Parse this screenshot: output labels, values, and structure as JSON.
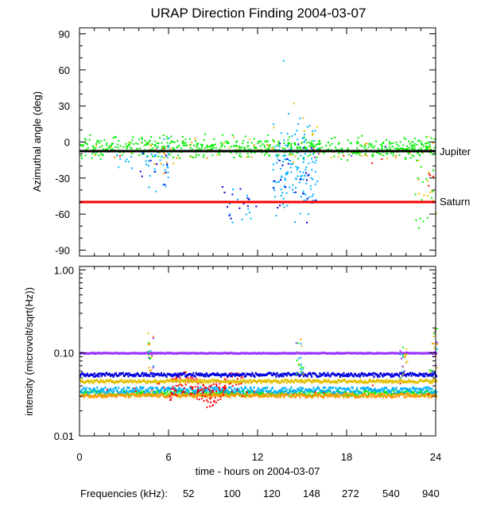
{
  "chart_data": [
    {
      "type": "scatter",
      "title": "URAP Direction Finding  2004-03-07",
      "ylabel": "Azimuthal angle (deg)",
      "xlabel": "",
      "xlim": [
        0,
        24
      ],
      "ylim": [
        -95,
        95
      ],
      "yticks": [
        -90,
        -60,
        -30,
        0,
        30,
        60,
        90
      ],
      "yticklabels": [
        "-90",
        "-60",
        "-30",
        "0",
        "30",
        "60",
        "90"
      ],
      "reference_lines": [
        {
          "name": "Jupiter",
          "value": -7,
          "color": "#000000"
        },
        {
          "name": "Saturn",
          "value": -48,
          "color": "#ff0000"
        }
      ],
      "series": [
        {
          "name": "52",
          "color": "#ff0000",
          "clusters": [
            {
              "x": [
                0,
                24
              ],
              "center": -10,
              "spread": 6,
              "count": 10
            },
            {
              "x": [
                23.3,
                24
              ],
              "center": -25,
              "spread": 10,
              "count": 4
            }
          ]
        },
        {
          "name": "100",
          "color": "#ff9900",
          "clusters": [
            {
              "x": [
                0,
                24
              ],
              "center": -6,
              "spread": 6,
              "count": 35
            },
            {
              "x": [
                4.5,
                6
              ],
              "center": -10,
              "spread": 10,
              "count": 10
            }
          ]
        },
        {
          "name": "120",
          "color": "#e0c000",
          "clusters": [
            {
              "x": [
                0,
                24
              ],
              "center": -6,
              "spread": 7,
              "count": 45
            },
            {
              "x": [
                22.5,
                24
              ],
              "center": -40,
              "spread": 25,
              "count": 12
            },
            {
              "x": [
                13,
                16
              ],
              "center": 0,
              "spread": 20,
              "count": 10
            }
          ]
        },
        {
          "name": "148",
          "color": "#00ee00",
          "clusters": [
            {
              "x": [
                0,
                24
              ],
              "center": -4,
              "spread": 6,
              "count": 650
            },
            {
              "x": [
                22.5,
                23.8
              ],
              "center": -45,
              "spread": 20,
              "count": 14
            }
          ]
        },
        {
          "name": "272",
          "color": "#00b0ff",
          "clusters": [
            {
              "x": [
                13,
                16
              ],
              "center": -20,
              "spread": 28,
              "count": 150
            },
            {
              "x": [
                4,
                6
              ],
              "center": -15,
              "spread": 18,
              "count": 35
            },
            {
              "x": [
                10,
                11.5
              ],
              "center": -55,
              "spread": 12,
              "count": 12
            },
            {
              "x": [
                2,
                3.5
              ],
              "center": -10,
              "spread": 12,
              "count": 10
            },
            {
              "x": [
                13.5,
                13.7
              ],
              "center": 70,
              "spread": 3,
              "count": 1
            }
          ]
        },
        {
          "name": "540",
          "color": "#0000dd",
          "clusters": [
            {
              "x": [
                9.5,
                12
              ],
              "center": -50,
              "spread": 12,
              "count": 14
            },
            {
              "x": [
                13,
                16
              ],
              "center": -30,
              "spread": 25,
              "count": 25
            },
            {
              "x": [
                4,
                6
              ],
              "center": -20,
              "spread": 15,
              "count": 10
            }
          ]
        },
        {
          "name": "940",
          "color": "#9933ff",
          "clusters": [
            {
              "x": [
                0,
                24
              ],
              "center": -10,
              "spread": 8,
              "count": 5
            }
          ]
        }
      ]
    },
    {
      "type": "line",
      "title": "",
      "ylabel": "intensity (microvolt/sqrt(Hz))",
      "xlabel": "time - hours on 2004-03-07",
      "xlim": [
        0,
        24
      ],
      "yscale": "log",
      "ylim": [
        0.01,
        1.1
      ],
      "yticks": [
        0.01,
        0.1,
        1.0
      ],
      "yticklabels": [
        "0.01",
        "0.10",
        "1.00"
      ],
      "xticks": [
        0,
        6,
        12,
        18,
        24
      ],
      "xticklabels": [
        "0",
        "6",
        "12",
        "18",
        "24"
      ],
      "series": [
        {
          "name": "940",
          "color": "#9933ff",
          "level": 0.1,
          "noise": 0.01
        },
        {
          "name": "540",
          "color": "#0000dd",
          "level": 0.055,
          "noise": 0.05
        },
        {
          "name": "120",
          "color": "#e0c000",
          "level": 0.046,
          "noise": 0.04
        },
        {
          "name": "272",
          "color": "#00b0ff",
          "level": 0.036,
          "noise": 0.08
        },
        {
          "name": "148",
          "color": "#00ee00",
          "level": 0.033,
          "noise": 0.07
        },
        {
          "name": "100",
          "color": "#ff9900",
          "level": 0.031,
          "noise": 0.05
        },
        {
          "name": "52",
          "color": "#ff0000",
          "level": 0.04,
          "noise": 0.15
        }
      ],
      "bursts": [
        {
          "hour": 4.7,
          "max": 0.18
        },
        {
          "hour": 14.8,
          "max": 0.15
        },
        {
          "hour": 21.8,
          "max": 0.12
        },
        {
          "hour": 23.8,
          "max": 0.2
        }
      ]
    }
  ],
  "legend": {
    "label": "Frequencies (kHz):",
    "items": [
      {
        "text": "52",
        "color": "#ff0000"
      },
      {
        "text": "100",
        "color": "#ff9900"
      },
      {
        "text": "120",
        "color": "#e0c000"
      },
      {
        "text": "148",
        "color": "#00ee00"
      },
      {
        "text": "272",
        "color": "#00b0ff"
      },
      {
        "text": "540",
        "color": "#0000dd"
      },
      {
        "text": "940",
        "color": "#9933ff"
      }
    ]
  }
}
